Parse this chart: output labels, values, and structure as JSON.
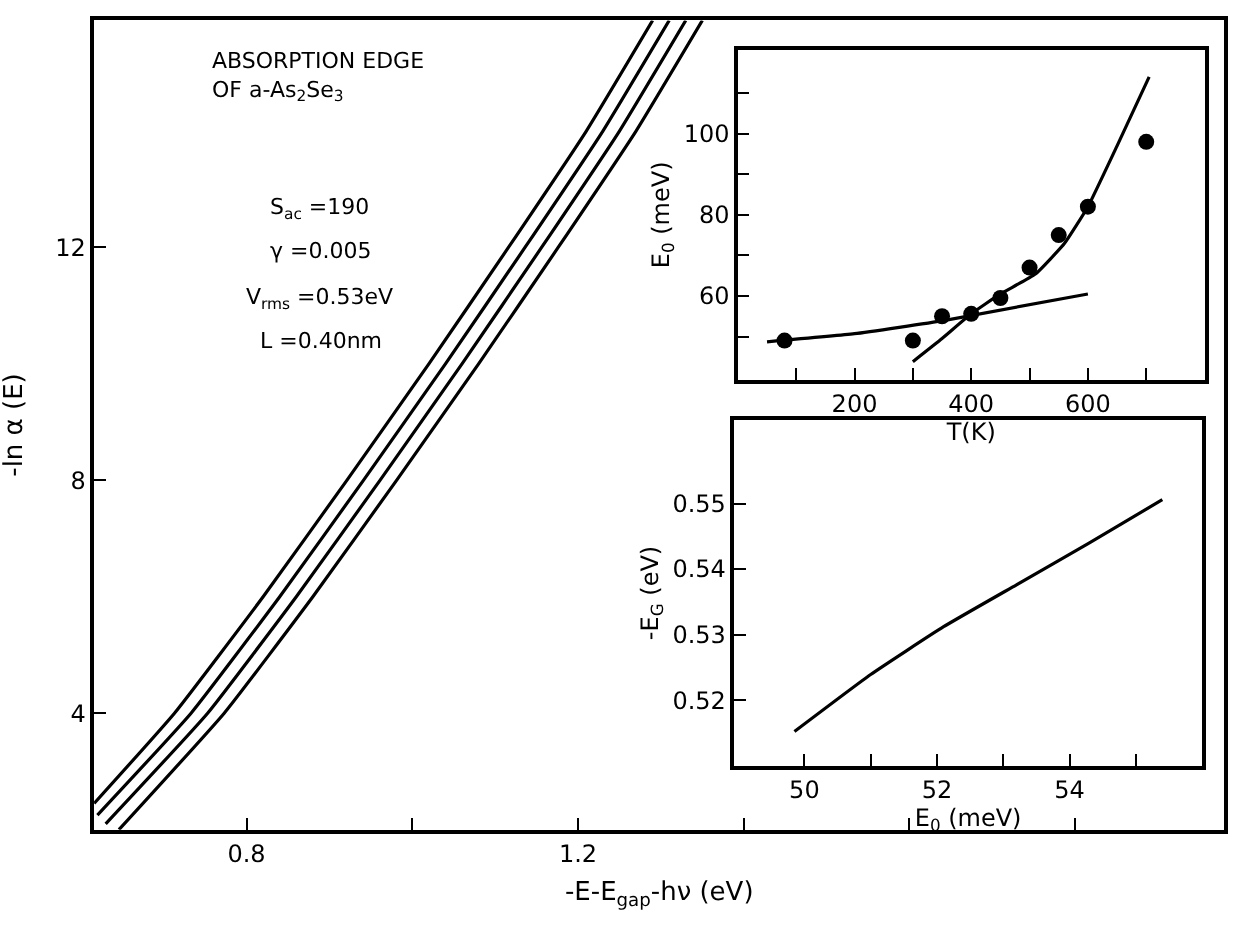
{
  "chart_data": [
    {
      "type": "line",
      "title": "ABSORPTION EDGE\nOF a-As$_{2}$Se$_{3}$",
      "xlabel": "-E-E$_{gap}$-hν (eV)",
      "ylabel": "-ln α (E)",
      "annotations": [
        "S$_{ac}$ =190",
        "γ =0.005",
        "V$_{rms}$ =0.53eV",
        "L =0.40nm"
      ],
      "xlim": [
        0.616,
        1.98
      ],
      "ylim": [
        2,
        15.9
      ],
      "xticks": [
        0.8,
        {
          "value": 1.0,
          "label": null
        },
        1.2,
        {
          "value": 1.4,
          "label": null
        },
        {
          "value": 1.6,
          "label": null
        },
        {
          "value": 1.8,
          "label": null
        }
      ],
      "yticks": [
        4,
        8,
        12
      ],
      "marker": "none",
      "line_style": "solid",
      "series": [
        {
          "color": "#000000",
          "x": [
            0.616,
            0.713,
            0.82,
            0.921,
            1.02,
            1.116,
            1.21,
            1.29
          ],
          "values": [
            2.45,
            4,
            6,
            8,
            10,
            12,
            14,
            15.9
          ]
        },
        {
          "color": "#000000",
          "x": [
            0.62,
            0.733,
            0.84,
            0.941,
            1.04,
            1.136,
            1.23,
            1.31
          ],
          "values": [
            2.25,
            4,
            6,
            8,
            10,
            12,
            14,
            15.9
          ]
        },
        {
          "color": "#000000",
          "x": [
            0.63,
            0.753,
            0.86,
            0.961,
            1.06,
            1.156,
            1.25,
            1.33
          ],
          "values": [
            2.1,
            4,
            6,
            8,
            10,
            12,
            14,
            15.9
          ]
        },
        {
          "color": "#000000",
          "x": [
            0.646,
            0.773,
            0.88,
            0.981,
            1.08,
            1.176,
            1.27,
            1.35
          ],
          "values": [
            2.0,
            4,
            6,
            8,
            10,
            12,
            14,
            15.9
          ]
        }
      ]
    },
    {
      "type": "scatter",
      "xlabel": "T(K)",
      "ylabel": "E$_{0}$ (meV)",
      "xlim": [
        0,
        800
      ],
      "ylim": [
        39.4,
        120.6
      ],
      "xticks": [
        {
          "value": 100,
          "label": null
        },
        200,
        {
          "value": 300,
          "label": null
        },
        400,
        {
          "value": 500,
          "label": null
        },
        600,
        {
          "value": 700,
          "label": null
        }
      ],
      "yticks": [
        {
          "value": 50,
          "label": null
        },
        60,
        {
          "value": 70,
          "label": null
        },
        80,
        {
          "value": 90,
          "label": null
        },
        100,
        {
          "value": 110,
          "label": null
        }
      ],
      "series": [
        {
          "type": "scatter",
          "marker": "circle",
          "color": "#000000",
          "x": [
            80,
            300,
            350,
            400,
            450,
            500,
            550,
            600,
            700
          ],
          "values": [
            49,
            49,
            55,
            55.6,
            59.5,
            67,
            75,
            82,
            98
          ]
        },
        {
          "type": "line",
          "marker": "none",
          "color": "#000000",
          "x": [
            50,
            200,
            355,
            600
          ],
          "values": [
            48.7,
            50.7,
            54,
            60.5
          ]
        },
        {
          "type": "line",
          "marker": "none",
          "color": "#000000",
          "x": [
            300,
            350,
            400,
            450,
            510,
            560,
            600,
            650,
            705
          ],
          "values": [
            43.8,
            49.5,
            55.6,
            60.5,
            65.4,
            73,
            82,
            97,
            114
          ]
        }
      ]
    },
    {
      "type": "line",
      "xlabel": "E$_{0}$ (meV)",
      "ylabel": "-E$_{G}$ (eV)",
      "xlim": [
        48.94,
        56.0
      ],
      "ylim": [
        0.51,
        0.5627
      ],
      "xticks": [
        50,
        {
          "value": 51,
          "label": null
        },
        52,
        {
          "value": 53,
          "label": null
        },
        54,
        {
          "value": 55,
          "label": null
        }
      ],
      "yticks": [
        0.52,
        0.53,
        0.54,
        0.55
      ],
      "marker": "none",
      "series": [
        {
          "color": "#000000",
          "x": [
            49.85,
            51.0,
            52.1,
            53.2,
            54.3,
            55.4
          ],
          "values": [
            0.5152,
            0.5239,
            0.5312,
            0.5376,
            0.544,
            0.5506
          ]
        }
      ]
    }
  ]
}
